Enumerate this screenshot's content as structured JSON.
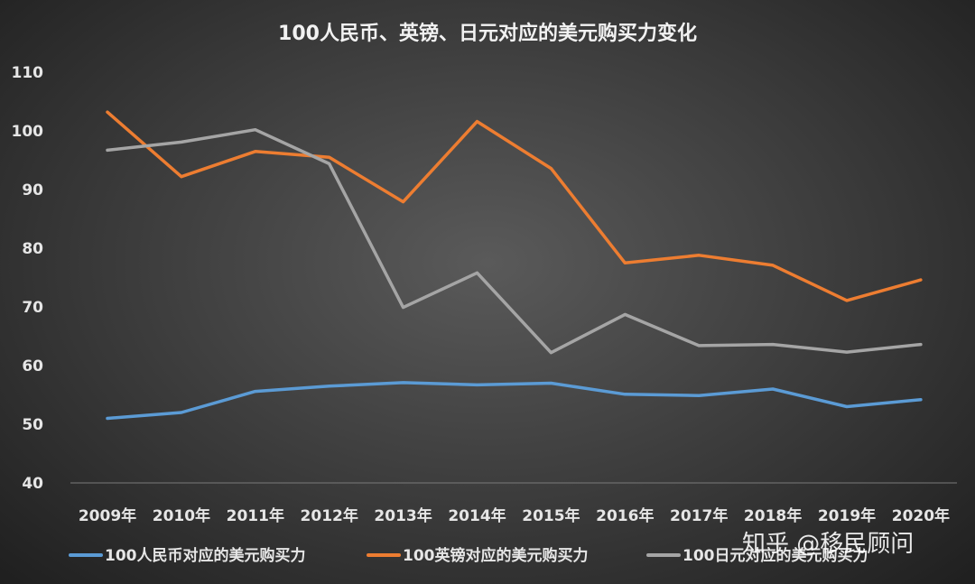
{
  "chart_data": {
    "type": "line",
    "title": "100人民币、英镑、日元对应的美元购买力变化",
    "xlabel": "",
    "ylabel": "",
    "categories": [
      "2009年",
      "2010年",
      "2011年",
      "2012年",
      "2013年",
      "2014年",
      "2015年",
      "2016年",
      "2017年",
      "2018年",
      "2019年",
      "2020年"
    ],
    "ylim": [
      40,
      110
    ],
    "yticks": [
      40,
      50,
      60,
      70,
      80,
      90,
      100,
      110
    ],
    "grid": false,
    "legend_position": "bottom",
    "series": [
      {
        "name": "100人民币对应的美元购买力",
        "color": "#5b9bd5",
        "values": [
          51.0,
          52.0,
          55.6,
          56.5,
          57.1,
          56.7,
          57.0,
          55.1,
          54.9,
          56.0,
          53.0,
          54.2
        ]
      },
      {
        "name": "100英镑对应的美元购买力",
        "color": "#ed7d31",
        "values": [
          103.2,
          92.2,
          96.5,
          95.5,
          87.9,
          101.6,
          93.6,
          77.5,
          78.8,
          77.1,
          71.1,
          74.6
        ]
      },
      {
        "name": "100日元对应的美元购买力",
        "color": "#a5a5a5",
        "values": [
          96.7,
          98.1,
          100.2,
          94.4,
          69.9,
          75.8,
          62.2,
          68.7,
          63.4,
          63.6,
          62.3,
          63.6
        ]
      }
    ]
  },
  "watermark": "知乎 @移民顾问"
}
